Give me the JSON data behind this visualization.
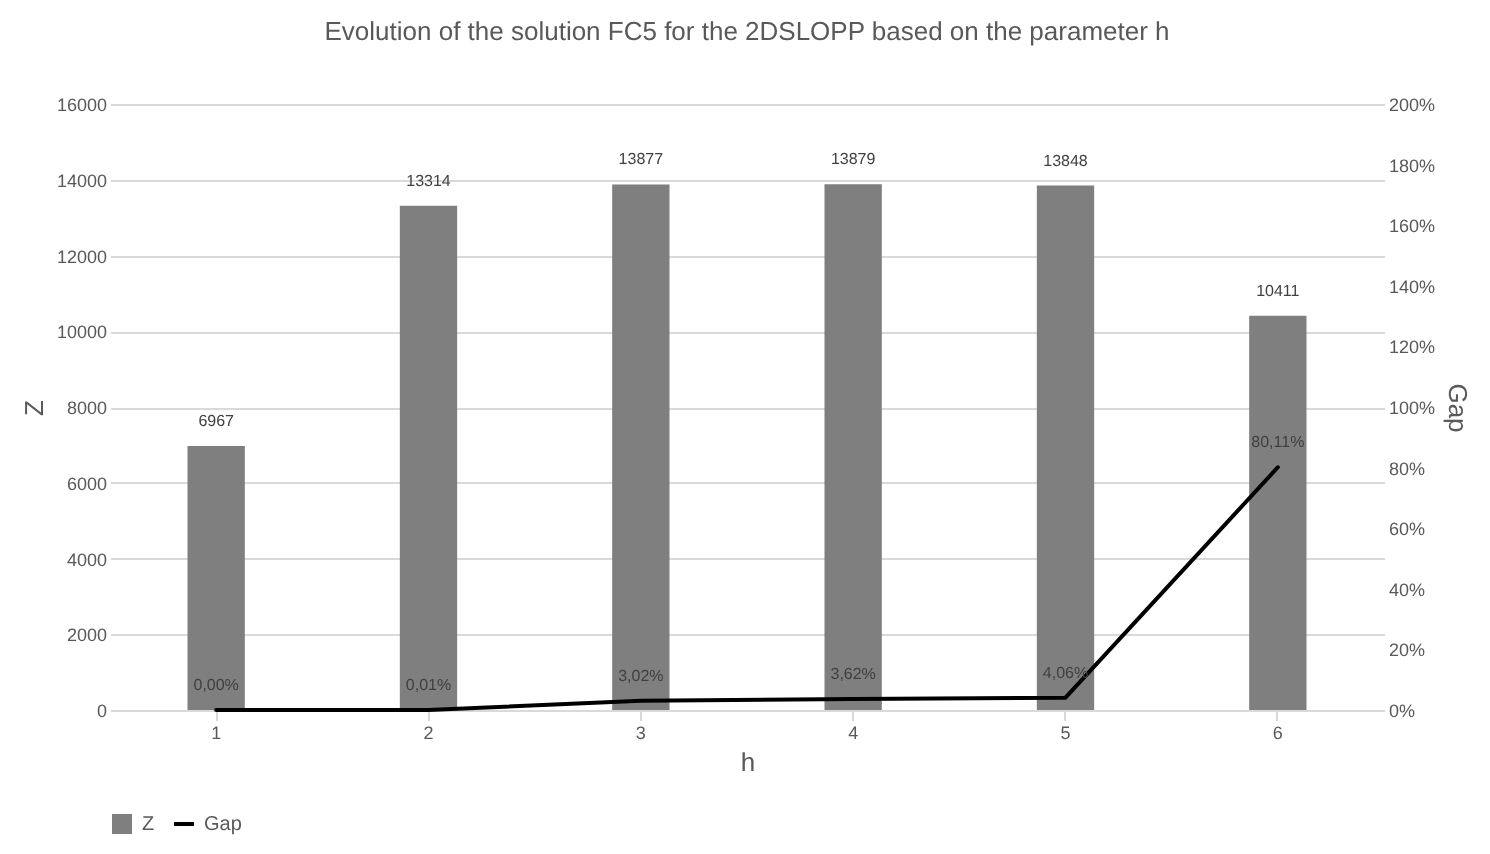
{
  "chart_data": {
    "type": "bar",
    "title": "Evolution of the solution FC5 for the 2DSLOPP based on the parameter h",
    "xlabel": "h",
    "ylabel": "Z",
    "y2label": "Gap",
    "categories": [
      "1",
      "2",
      "3",
      "4",
      "5",
      "6"
    ],
    "series": [
      {
        "name": "Z",
        "color": "#7f7f7f",
        "values": [
          6967,
          13314,
          13877,
          13879,
          13848,
          10411
        ]
      },
      {
        "name": "Gap",
        "type": "line",
        "axis": "y2",
        "color": "#000000",
        "line_style": "solid",
        "values": [
          0,
          0.01,
          3.02,
          3.62,
          4.06,
          80.11
        ],
        "value_labels": [
          "0,00%",
          "0,01%",
          "3,02%",
          "3,62%",
          "4,06%",
          "80,11%"
        ]
      }
    ],
    "data_labels": true,
    "ylim": [
      0,
      16000
    ],
    "yticks": [
      0,
      2000,
      4000,
      6000,
      8000,
      10000,
      12000,
      14000,
      16000
    ],
    "y2lim": [
      0,
      200
    ],
    "y2ticks": [
      {
        "value": 0,
        "label": "0%"
      },
      {
        "value": 20,
        "label": "20%"
      },
      {
        "value": 40,
        "label": "40%"
      },
      {
        "value": 60,
        "label": "60%"
      },
      {
        "value": 80,
        "label": "80%"
      },
      {
        "value": 100,
        "label": "100%"
      },
      {
        "value": 120,
        "label": "120%"
      },
      {
        "value": 140,
        "label": "140%"
      },
      {
        "value": 160,
        "label": "160%"
      },
      {
        "value": 180,
        "label": "180%"
      },
      {
        "value": 200,
        "label": "200%"
      }
    ],
    "grid": "y",
    "legend": "bottom"
  }
}
